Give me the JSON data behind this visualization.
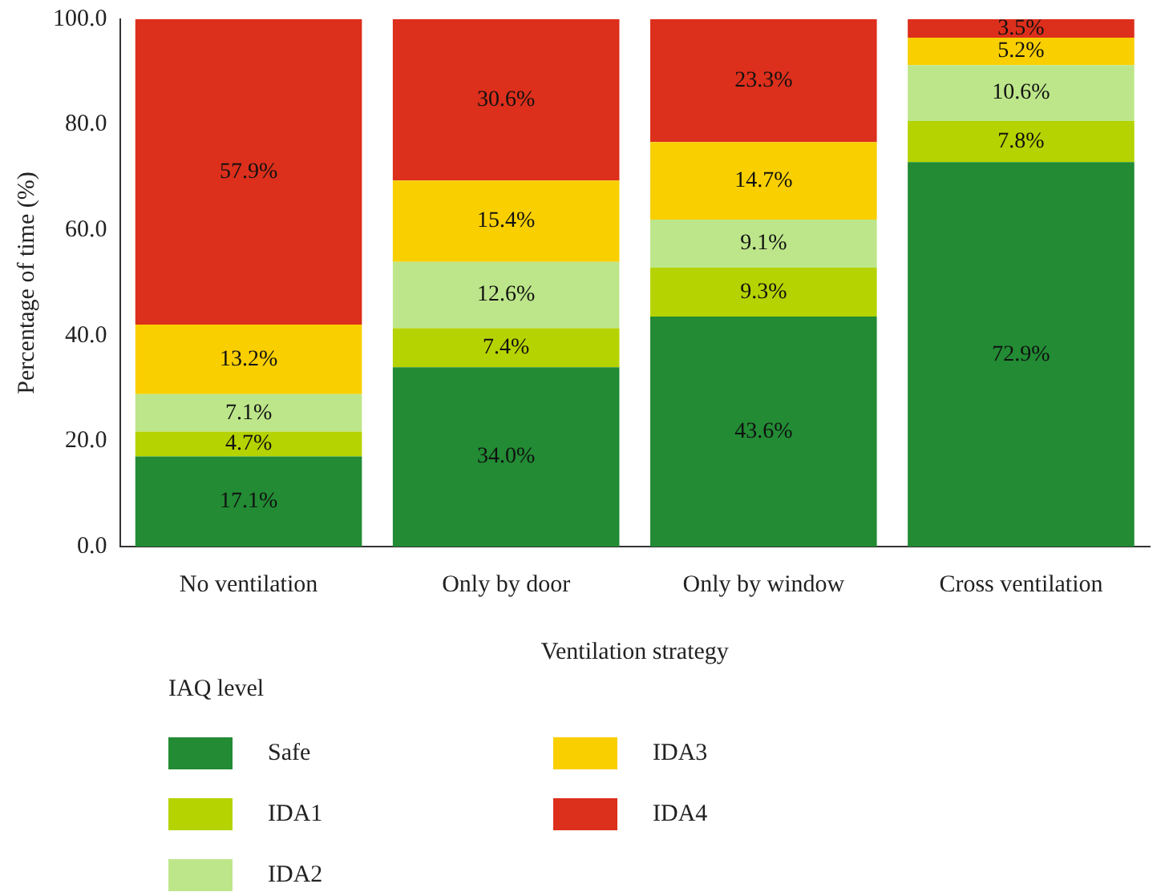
{
  "chart_data": {
    "type": "bar",
    "stacked": true,
    "xlabel": "Ventilation strategy",
    "ylabel": "Percentage of time (%)",
    "legend_title": "IAQ level",
    "legend": "bottom",
    "data_labels": true,
    "grid": false,
    "categories": [
      "No ventilation",
      "Only by door",
      "Only by window",
      "Cross ventilation"
    ],
    "ylim": [
      0,
      100
    ],
    "yticks": [
      {
        "value": 0,
        "label": "0.0"
      },
      {
        "value": 20,
        "label": "20.0"
      },
      {
        "value": 40,
        "label": "40.0"
      },
      {
        "value": 60,
        "label": "60.0"
      },
      {
        "value": 80,
        "label": "80.0"
      },
      {
        "value": 100,
        "label": "100.0"
      }
    ],
    "series": [
      {
        "name": "Safe",
        "color": "#228b34",
        "values": [
          17.1,
          34.0,
          43.6,
          72.9
        ],
        "value_labels": [
          "17.1%",
          "34.0%",
          "43.6%",
          "72.9%"
        ]
      },
      {
        "name": "IDA1",
        "color": "#b5d300",
        "values": [
          4.7,
          7.4,
          9.3,
          7.8
        ],
        "value_labels": [
          "4.7%",
          "7.4%",
          "9.3%",
          "7.8%"
        ]
      },
      {
        "name": "IDA2",
        "color": "#bde68a",
        "values": [
          7.1,
          12.6,
          9.1,
          10.6
        ],
        "value_labels": [
          "7.1%",
          "12.6%",
          "9.1%",
          "10.6%"
        ]
      },
      {
        "name": "IDA3",
        "color": "#f9cf00",
        "values": [
          13.2,
          15.4,
          14.7,
          5.2
        ],
        "value_labels": [
          "13.2%",
          "15.4%",
          "14.7%",
          "5.2%"
        ]
      },
      {
        "name": "IDA4",
        "color": "#dc2f1c",
        "values": [
          57.9,
          30.6,
          23.3,
          3.5
        ],
        "value_labels": [
          "57.9%",
          "30.6%",
          "23.3%",
          "3.5%"
        ]
      }
    ]
  }
}
